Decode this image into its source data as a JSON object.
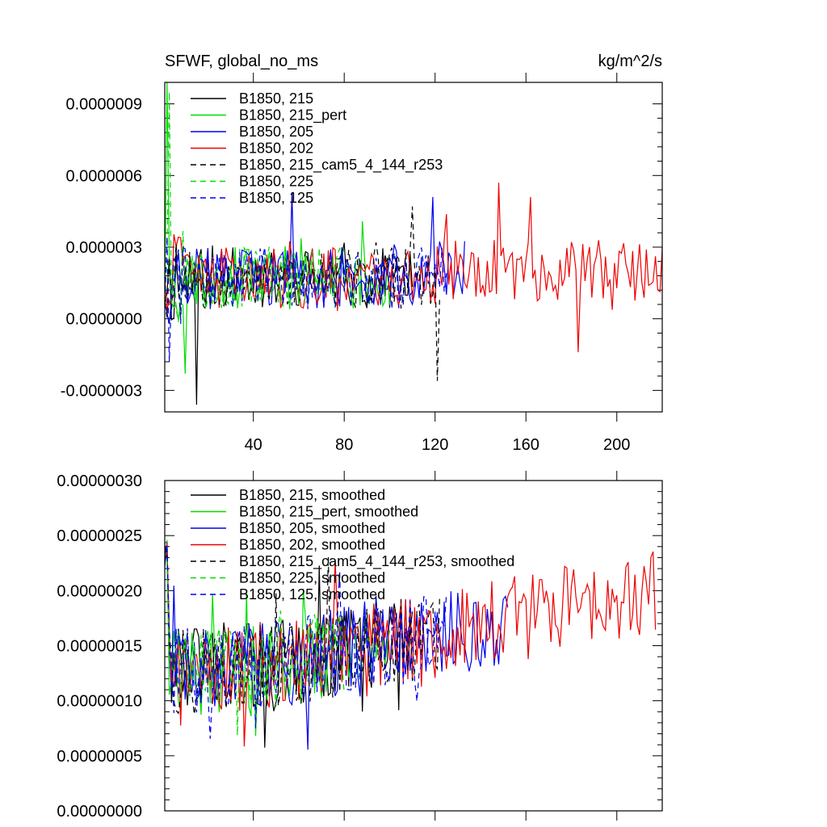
{
  "chart_data": [
    {
      "type": "line",
      "title_left": "SFWF, global_no_ms",
      "title_right": "kg/m^2/s",
      "xlim": [
        1,
        220
      ],
      "ylim": [
        -3.9e-07,
        9.9e-07
      ],
      "xticks": [
        40,
        80,
        120,
        160,
        200
      ],
      "xtick_labels": [
        "40",
        "80",
        "120",
        "160",
        "200"
      ],
      "yticks": [
        -3e-07,
        0.0,
        3e-07,
        6e-07,
        9e-07
      ],
      "ytick_labels": [
        "-0.0000003",
        "0.0000000",
        "0.0000003",
        "0.0000006",
        "0.0000009"
      ],
      "series": [
        {
          "name": "B1850, 215",
          "color": "#000000",
          "dash": "solid",
          "seed": 11,
          "x_end": 110,
          "spikes": [
            {
              "x": 15,
              "y": -3.6e-07
            }
          ]
        },
        {
          "name": "B1850, 215_pert",
          "color": "#00dd00",
          "dash": "solid",
          "seed": 23,
          "x_end": 100,
          "spikes": [
            {
              "x": 2,
              "y": 9.9e-07
            },
            {
              "x": 10,
              "y": -2.3e-07
            }
          ]
        },
        {
          "name": "B1850, 205",
          "color": "#0000ee",
          "dash": "solid",
          "seed": 37,
          "x_end": 133,
          "spikes": [
            {
              "x": 57,
              "y": 5.3e-07
            },
            {
              "x": 119,
              "y": 5.1e-07
            }
          ]
        },
        {
          "name": "B1850, 202",
          "color": "#ee0000",
          "dash": "solid",
          "seed": 41,
          "x_end": 220,
          "spikes": [
            {
              "x": 148,
              "y": 5.7e-07
            },
            {
              "x": 162,
              "y": 5.1e-07
            },
            {
              "x": 183,
              "y": -1.4e-07
            }
          ]
        },
        {
          "name": "B1850, 215_cam5_4_144_r253",
          "color": "#000000",
          "dash": "dashed",
          "seed": 53,
          "x_end": 122,
          "spikes": [
            {
              "x": 121,
              "y": -2.6e-07
            },
            {
              "x": 110,
              "y": 4.7e-07
            }
          ]
        },
        {
          "name": "B1850, 225",
          "color": "#00dd00",
          "dash": "dashed",
          "seed": 67,
          "x_end": 80,
          "spikes": [
            {
              "x": 3,
              "y": 9.5e-07
            }
          ]
        },
        {
          "name": "B1850, 125",
          "color": "#0000ee",
          "dash": "dashed",
          "seed": 79,
          "x_end": 125,
          "spikes": [
            {
              "x": 3,
              "y": -1.8e-07
            }
          ]
        }
      ]
    },
    {
      "type": "line",
      "xlim": [
        1,
        220
      ],
      "ylim": [
        0.0,
        3e-07
      ],
      "xticks": [
        40,
        80,
        120,
        160,
        200
      ],
      "xtick_labels": [
        "",
        "",
        "",
        "",
        ""
      ],
      "yticks": [
        0.0,
        5e-08,
        1e-07,
        1.5e-07,
        2e-07,
        2.5e-07,
        3e-07
      ],
      "ytick_labels": [
        "0.00000000",
        "0.00000005",
        "0.00000010",
        "0.00000015",
        "0.00000020",
        "0.00000025",
        "0.00000030"
      ],
      "series": [
        {
          "name": "B1850, 215, smoothed",
          "color": "#000000",
          "dash": "solid",
          "seed": 13,
          "x_end": 110
        },
        {
          "name": "B1850, 215_pert, smoothed",
          "color": "#00dd00",
          "dash": "solid",
          "seed": 29,
          "x_end": 100
        },
        {
          "name": "B1850, 205, smoothed",
          "color": "#0000ee",
          "dash": "solid",
          "seed": 31,
          "x_end": 152
        },
        {
          "name": "B1850, 202, smoothed",
          "color": "#ee0000",
          "dash": "solid",
          "seed": 43,
          "x_end": 217
        },
        {
          "name": "B1850, 215_cam5_4_144_r253, smoothed",
          "color": "#000000",
          "dash": "dashed",
          "seed": 59,
          "x_end": 122
        },
        {
          "name": "B1850, 225, smoothed",
          "color": "#00dd00",
          "dash": "dashed",
          "seed": 61,
          "x_end": 80
        },
        {
          "name": "B1850, 125, smoothed",
          "color": "#0000ee",
          "dash": "dashed",
          "seed": 71,
          "x_end": 125
        }
      ]
    }
  ]
}
